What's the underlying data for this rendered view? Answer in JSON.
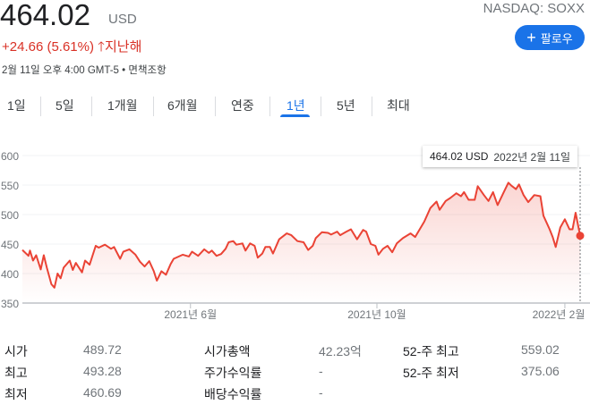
{
  "quote": {
    "price": "464.02",
    "currency": "USD",
    "ticker": "NASDAQ: SOXX",
    "change": "+24.66 (5.61%)",
    "change_arrow_icon": "arrow-up-icon",
    "change_period": "지난해",
    "timestamp": "2월 11일 오후 4:00 GMT-5",
    "disclaimer": "면책조항",
    "follow_label": "팔로우"
  },
  "tabs": [
    {
      "label": "1일"
    },
    {
      "label": "5일"
    },
    {
      "label": "1개월"
    },
    {
      "label": "6개월"
    },
    {
      "label": "연중"
    },
    {
      "label": "1년",
      "active": true
    },
    {
      "label": "5년"
    },
    {
      "label": "최대"
    }
  ],
  "colors": {
    "line": "#ea4335",
    "accent": "#1a73e8",
    "negative_change": "#d93025"
  },
  "tooltip": {
    "value": "464.02 USD",
    "date": "2022년 2월 11일"
  },
  "chart_data": {
    "type": "area",
    "ylim": [
      350,
      600
    ],
    "y_ticks": [
      "600",
      "550",
      "500",
      "450",
      "400",
      "350"
    ],
    "x_ticks": [
      {
        "date": "2021-06-01",
        "label": "2021년 6월"
      },
      {
        "date": "2021-10-01",
        "label": "2021년 10월"
      },
      {
        "date": "2022-02-01",
        "label": "2022년 2월"
      }
    ],
    "grid": true,
    "points": [
      [
        "2021-02-11",
        440
      ],
      [
        "2021-02-15",
        430
      ],
      [
        "2021-02-16",
        439
      ],
      [
        "2021-02-18",
        422
      ],
      [
        "2021-02-20",
        431
      ],
      [
        "2021-02-23",
        407
      ],
      [
        "2021-02-25",
        431
      ],
      [
        "2021-02-27",
        410
      ],
      [
        "2021-03-02",
        382
      ],
      [
        "2021-03-04",
        376
      ],
      [
        "2021-03-06",
        400
      ],
      [
        "2021-03-08",
        392
      ],
      [
        "2021-03-10",
        410
      ],
      [
        "2021-03-14",
        422
      ],
      [
        "2021-03-16",
        406
      ],
      [
        "2021-03-18",
        418
      ],
      [
        "2021-03-22",
        402
      ],
      [
        "2021-03-24",
        422
      ],
      [
        "2021-03-27",
        415
      ],
      [
        "2021-03-31",
        447
      ],
      [
        "2021-04-02",
        444
      ],
      [
        "2021-04-06",
        449
      ],
      [
        "2021-04-10",
        442
      ],
      [
        "2021-04-12",
        445
      ],
      [
        "2021-04-16",
        425
      ],
      [
        "2021-04-18",
        437
      ],
      [
        "2021-04-22",
        441
      ],
      [
        "2021-04-26",
        432
      ],
      [
        "2021-04-29",
        420
      ],
      [
        "2021-05-02",
        412
      ],
      [
        "2021-05-05",
        421
      ],
      [
        "2021-05-08",
        404
      ],
      [
        "2021-05-10",
        388
      ],
      [
        "2021-05-13",
        404
      ],
      [
        "2021-05-16",
        398
      ],
      [
        "2021-05-19",
        416
      ],
      [
        "2021-05-21",
        425
      ],
      [
        "2021-05-27",
        432
      ],
      [
        "2021-05-31",
        429
      ],
      [
        "2021-06-02",
        437
      ],
      [
        "2021-06-06",
        430
      ],
      [
        "2021-06-10",
        441
      ],
      [
        "2021-06-13",
        435
      ],
      [
        "2021-06-15",
        439
      ],
      [
        "2021-06-18",
        430
      ],
      [
        "2021-06-21",
        433
      ],
      [
        "2021-06-24",
        442
      ],
      [
        "2021-06-26",
        453
      ],
      [
        "2021-06-29",
        455
      ],
      [
        "2021-07-01",
        449
      ],
      [
        "2021-07-05",
        451
      ],
      [
        "2021-07-07",
        439
      ],
      [
        "2021-07-10",
        451
      ],
      [
        "2021-07-13",
        447
      ],
      [
        "2021-07-15",
        427
      ],
      [
        "2021-07-18",
        434
      ],
      [
        "2021-07-20",
        445
      ],
      [
        "2021-07-23",
        445
      ],
      [
        "2021-07-25",
        434
      ],
      [
        "2021-07-29",
        458
      ],
      [
        "2021-08-03",
        468
      ],
      [
        "2021-08-06",
        465
      ],
      [
        "2021-08-10",
        455
      ],
      [
        "2021-08-14",
        453
      ],
      [
        "2021-08-17",
        440
      ],
      [
        "2021-08-20",
        447
      ],
      [
        "2021-08-22",
        460
      ],
      [
        "2021-08-26",
        470
      ],
      [
        "2021-08-30",
        469
      ],
      [
        "2021-09-01",
        466
      ],
      [
        "2021-09-05",
        471
      ],
      [
        "2021-09-07",
        465
      ],
      [
        "2021-09-11",
        471
      ],
      [
        "2021-09-14",
        475
      ],
      [
        "2021-09-18",
        458
      ],
      [
        "2021-09-22",
        474
      ],
      [
        "2021-09-24",
        471
      ],
      [
        "2021-09-27",
        450
      ],
      [
        "2021-09-30",
        447
      ],
      [
        "2021-10-02",
        432
      ],
      [
        "2021-10-05",
        442
      ],
      [
        "2021-10-08",
        447
      ],
      [
        "2021-10-11",
        436
      ],
      [
        "2021-10-14",
        451
      ],
      [
        "2021-10-18",
        460
      ],
      [
        "2021-10-23",
        468
      ],
      [
        "2021-10-26",
        462
      ],
      [
        "2021-10-29",
        475
      ],
      [
        "2021-11-01",
        488
      ],
      [
        "2021-11-05",
        511
      ],
      [
        "2021-11-09",
        522
      ],
      [
        "2021-11-11",
        508
      ],
      [
        "2021-11-15",
        523
      ],
      [
        "2021-11-18",
        528
      ],
      [
        "2021-11-22",
        536
      ],
      [
        "2021-11-25",
        531
      ],
      [
        "2021-11-27",
        538
      ],
      [
        "2021-11-30",
        525
      ],
      [
        "2021-12-04",
        525
      ],
      [
        "2021-12-06",
        548
      ],
      [
        "2021-12-10",
        533
      ],
      [
        "2021-12-13",
        523
      ],
      [
        "2021-12-16",
        538
      ],
      [
        "2021-12-19",
        516
      ],
      [
        "2021-12-23",
        538
      ],
      [
        "2021-12-26",
        554
      ],
      [
        "2021-12-28",
        549
      ],
      [
        "2021-12-31",
        543
      ],
      [
        "2022-01-02",
        551
      ],
      [
        "2022-01-05",
        533
      ],
      [
        "2022-01-08",
        521
      ],
      [
        "2022-01-12",
        533
      ],
      [
        "2022-01-16",
        531
      ],
      [
        "2022-01-18",
        498
      ],
      [
        "2022-01-22",
        475
      ],
      [
        "2022-01-24",
        462
      ],
      [
        "2022-01-26",
        445
      ],
      [
        "2022-01-29",
        478
      ],
      [
        "2022-02-01",
        492
      ],
      [
        "2022-02-04",
        475
      ],
      [
        "2022-02-06",
        475
      ],
      [
        "2022-02-08",
        503
      ],
      [
        "2022-02-11",
        464.02
      ]
    ]
  },
  "stats": [
    {
      "label": "시가",
      "value": "489.72"
    },
    {
      "label": "최고",
      "value": "493.28"
    },
    {
      "label": "최저",
      "value": "460.69"
    },
    {
      "label": "시가총액",
      "value": "42.23억"
    },
    {
      "label": "주가수익률",
      "value": "-"
    },
    {
      "label": "배당수익률",
      "value": "-"
    },
    {
      "label": "52-주 최고",
      "value": "559.02"
    },
    {
      "label": "52-주 최저",
      "value": "375.06"
    }
  ]
}
